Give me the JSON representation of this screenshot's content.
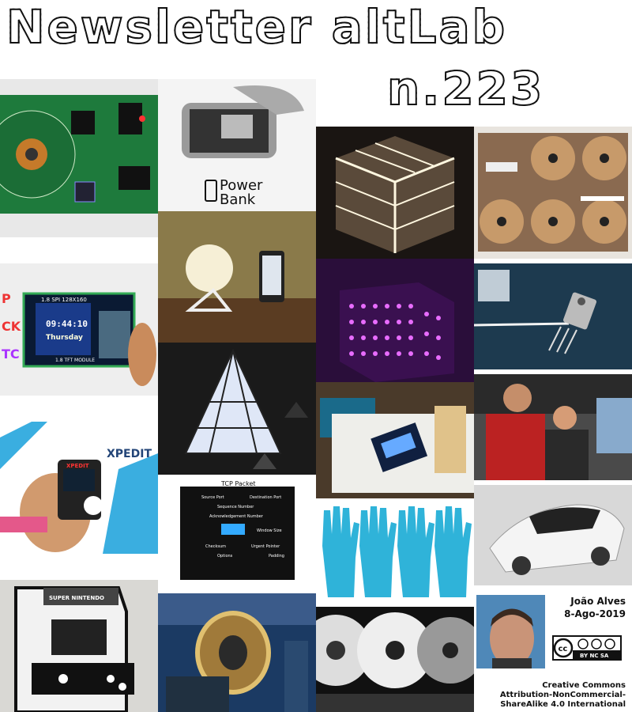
{
  "header": {
    "title": "Newsletter altLab",
    "issue": "n.223"
  },
  "tiles": {
    "powerbank_label": "Power\nBank",
    "power_label": "Power",
    "bank_label": "Bank",
    "rtc_small": "1.8 SPI 128X160",
    "rtc_time": "09:44:10",
    "rtc_day": "Thursday",
    "rtc_module": "1.8 TFT MODULE",
    "rtc_side": [
      "P",
      "CK",
      "TC"
    ],
    "xpedit": "XPEDIT",
    "xpedit_device": "XPEDIT",
    "tcp_title": "TCP Packet",
    "tcp_rows": [
      "Source Port",
      "Destination Port",
      "Sequence Number",
      "Acknowledgement Number",
      "Window Size",
      "Checksum",
      "Urgent Pointer",
      "Options",
      "Padding"
    ],
    "arcade_brand": "SUPER NINTENDO"
  },
  "credit": {
    "author": "João Alves",
    "date": "8-Ago-2019",
    "license_lines": [
      "Creative Commons",
      "Attribution-NonCommercial-",
      "ShareAlike 4.0 International"
    ],
    "badge_text": "BY NC SA"
  }
}
